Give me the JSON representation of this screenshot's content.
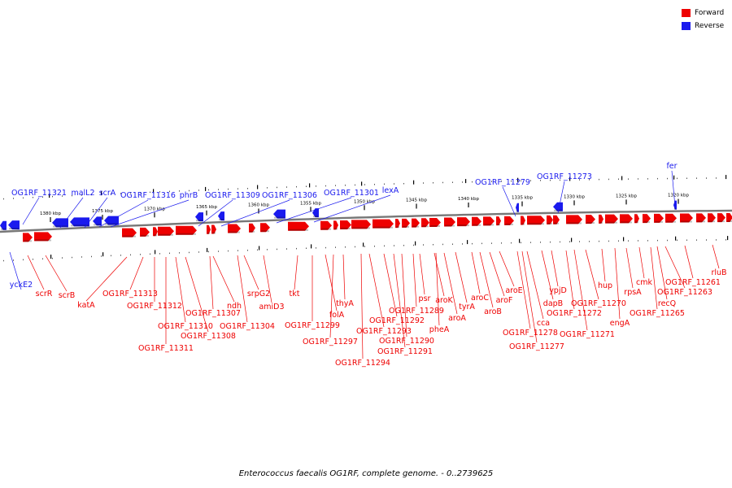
{
  "colors": {
    "forward": "#ee0000",
    "reverse": "#1a1aee",
    "backbone": "#777777",
    "tick": "#000000"
  },
  "legend": [
    {
      "label": "Forward",
      "color": "#ee0000"
    },
    {
      "label": "Reverse",
      "color": "#1a1aee"
    }
  ],
  "caption": "Enterococcus faecalis OG1RF, complete genome. - 0..2739625",
  "scale_ticks": [
    "1380 kbp",
    "1375 kbp",
    "1370 kbp",
    "1365 kbp",
    "1360 kbp",
    "1355 kbp",
    "1350 kbp",
    "1345 kbp",
    "1340 kbp",
    "1335 kbp",
    "1330 kbp",
    "1325 kbp",
    "1320 kbp"
  ],
  "reverse_genes": [
    "OG1RF_11321",
    "malL2",
    "scrA",
    "OG1RF_11316",
    "phrB",
    "OG1RF_11309",
    "OG1RF_11306",
    "OG1RF_11301",
    "lexA",
    "OG1RF_11279",
    "OG1RF_11273",
    "fer",
    "yckE2"
  ],
  "forward_genes": [
    "scrR",
    "scrB",
    "katA",
    "OG1RF_11313",
    "OG1RF_11312",
    "OG1RF_11311",
    "OG1RF_11310",
    "OG1RF_11308",
    "OG1RF_11307",
    "ndh",
    "OG1RF_11304",
    "srpG2",
    "amiD3",
    "tkt",
    "OG1RF_11299",
    "folA",
    "OG1RF_11297",
    "thyA",
    "OG1RF_11294",
    "OG1RF_11293",
    "OG1RF_11292",
    "OG1RF_11291",
    "OG1RF_11290",
    "OG1RF_11289",
    "psr",
    "aroK",
    "pheA",
    "aroA",
    "tyrA",
    "aroC",
    "aroB",
    "aroF",
    "aroE",
    "OG1RF_11278",
    "OG1RF_11277",
    "cca",
    "dapB",
    "ypjD",
    "OG1RF_11272",
    "OG1RF_11271",
    "OG1RF_11270",
    "hup",
    "engA",
    "rpsA",
    "cmk",
    "OG1RF_11265",
    "recQ",
    "OG1RF_11263",
    "OG1RF_11261",
    "rluB"
  ]
}
